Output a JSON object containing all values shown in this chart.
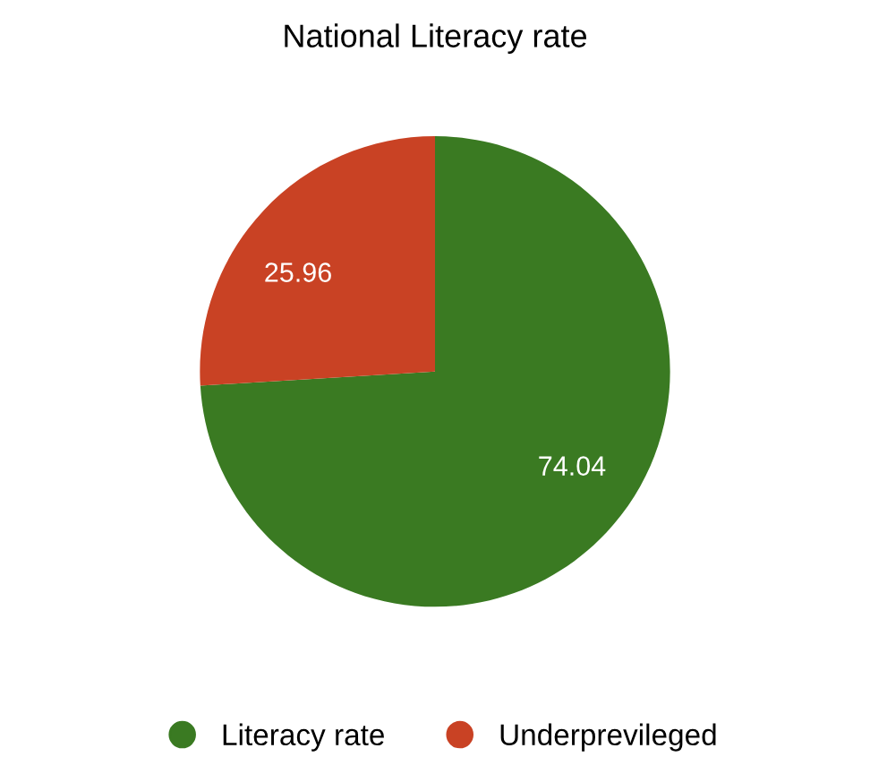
{
  "chart_data": {
    "type": "pie",
    "title": "National Literacy rate",
    "categories": [
      "Literacy rate",
      "Underprevileged"
    ],
    "values": [
      74.04,
      25.96
    ],
    "colors": [
      "#3a7a22",
      "#c94224"
    ],
    "data_labels": true,
    "legend": "bottom"
  }
}
